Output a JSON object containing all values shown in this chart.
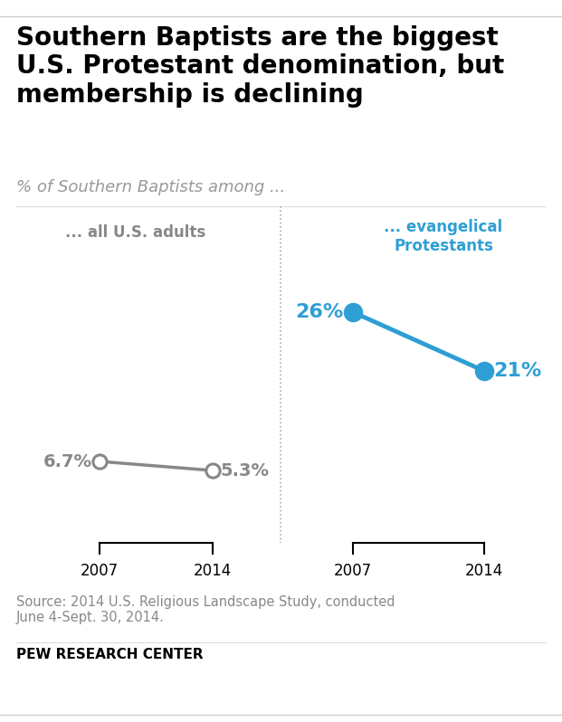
{
  "title": "Southern Baptists are the biggest\nU.S. Protestant denomination, but\nmembership is declining",
  "subtitle": "% of Southern Baptists among ...",
  "left_label": "... all U.S. adults",
  "right_label": "... evangelical\nProtestants",
  "left_value_labels": [
    "6.7%",
    "5.3%"
  ],
  "right_value_labels": [
    "26%",
    "21%"
  ],
  "left_line_color": "#888888",
  "right_line_color": "#2e9fd4",
  "left_marker_fill": "#ffffff",
  "right_marker_fill": "#2e9fd4",
  "source_text": "Source: 2014 U.S. Religious Landscape Study, conducted\nJune 4-Sept. 30, 2014.",
  "footer_text": "PEW RESEARCH CENTER",
  "top_line_color": "#cccccc",
  "bottom_line_color": "#cccccc",
  "separator_color": "#aaaaaa",
  "background_color": "#ffffff",
  "title_fontsize": 20,
  "subtitle_fontsize": 13,
  "label_fontsize": 12,
  "value_fontsize": 14,
  "year_fontsize": 12,
  "source_fontsize": 10.5,
  "footer_fontsize": 11
}
